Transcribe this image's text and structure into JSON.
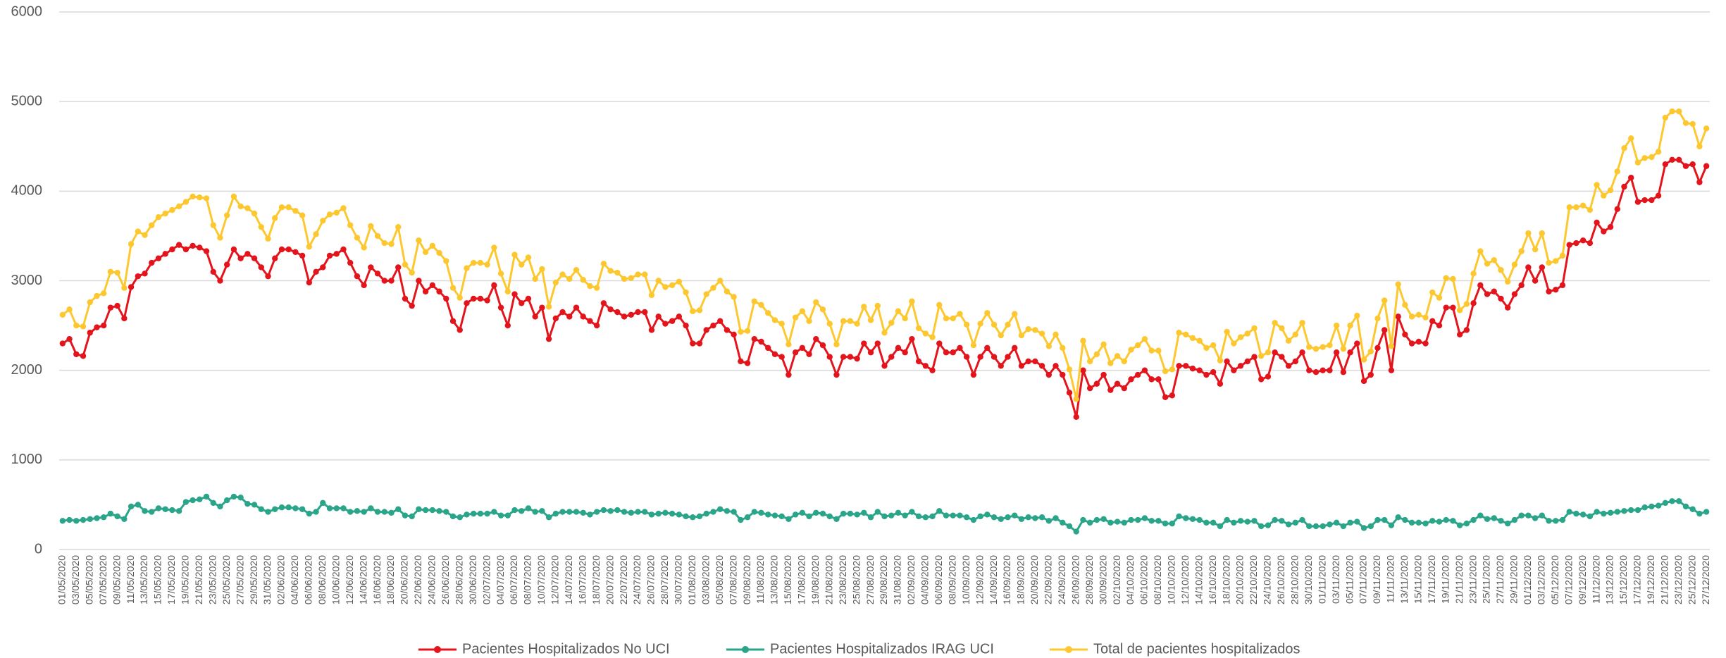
{
  "chart_data": {
    "type": "line",
    "categories": [
      "01/05/2020",
      null,
      "03/05/2020",
      null,
      "05/05/2020",
      null,
      "07/05/2020",
      null,
      "09/05/2020",
      null,
      "11/05/2020",
      null,
      "13/05/2020",
      null,
      "15/05/2020",
      null,
      "17/05/2020",
      null,
      "19/05/2020",
      null,
      "21/05/2020",
      null,
      "23/05/2020",
      null,
      "25/05/2020",
      null,
      "27/05/2020",
      null,
      "29/05/2020",
      null,
      "31/05/2020",
      null,
      "02/06/2020",
      null,
      "04/06/2020",
      null,
      "06/06/2020",
      null,
      "08/06/2020",
      null,
      "10/06/2020",
      null,
      "12/06/2020",
      null,
      "14/06/2020",
      null,
      "16/06/2020",
      null,
      "18/06/2020",
      null,
      "20/06/2020",
      null,
      "22/06/2020",
      null,
      "24/06/2020",
      null,
      "26/06/2020",
      null,
      "28/06/2020",
      null,
      "30/06/2020",
      null,
      "02/07/2020",
      null,
      "04/07/2020",
      null,
      "06/07/2020",
      null,
      "08/07/2020",
      null,
      "10/07/2020",
      null,
      "12/07/2020",
      null,
      "14/07/2020",
      null,
      "16/07/2020",
      null,
      "18/07/2020",
      null,
      "20/07/2020",
      null,
      "22/07/2020",
      null,
      "24/07/2020",
      null,
      "26/07/2020",
      null,
      "28/07/2020",
      null,
      "30/07/2020",
      null,
      "01/08/2020",
      null,
      "03/08/2020",
      null,
      "05/08/2020",
      null,
      "07/08/2020",
      null,
      "09/08/2020",
      null,
      "11/08/2020",
      null,
      "13/08/2020",
      null,
      "15/08/2020",
      null,
      "17/08/2020",
      null,
      "19/08/2020",
      null,
      "21/08/2020",
      null,
      "23/08/2020",
      null,
      "25/08/2020",
      null,
      "27/08/2020",
      null,
      "29/08/2020",
      null,
      "31/08/2020",
      null,
      "02/09/2020",
      null,
      "04/09/2020",
      null,
      "06/09/2020",
      null,
      "08/09/2020",
      null,
      "10/09/2020",
      null,
      "12/09/2020",
      null,
      "14/09/2020",
      null,
      "16/09/2020",
      null,
      "18/09/2020",
      null,
      "20/09/2020",
      null,
      "22/09/2020",
      null,
      "24/09/2020",
      null,
      "26/09/2020",
      null,
      "28/09/2020",
      null,
      "30/09/2020",
      null,
      "02/10/2020",
      null,
      "04/10/2020",
      null,
      "06/10/2020",
      null,
      "08/10/2020",
      null,
      "10/10/2020",
      null,
      "12/10/2020",
      null,
      "14/10/2020",
      null,
      "16/10/2020",
      null,
      "18/10/2020",
      null,
      "20/10/2020",
      null,
      "22/10/2020",
      null,
      "24/10/2020",
      null,
      "26/10/2020",
      null,
      "28/10/2020",
      null,
      "30/10/2020",
      null,
      "01/11/2020",
      null,
      "03/11/2020",
      null,
      "05/11/2020",
      null,
      "07/11/2020",
      null,
      "09/11/2020",
      null,
      "11/11/2020",
      null,
      "13/11/2020",
      null,
      "15/11/2020",
      null,
      "17/11/2020",
      null,
      "19/11/2020",
      null,
      "21/11/2020",
      null,
      "23/11/2020",
      null,
      "25/11/2020",
      null,
      "27/11/2020",
      null,
      "29/11/2020",
      null,
      "01/12/2020",
      null,
      "03/12/2020",
      null,
      "05/12/2020",
      null,
      "07/12/2020",
      null,
      "09/12/2020",
      null,
      "11/12/2020",
      null,
      "13/12/2020",
      null,
      "15/12/2020",
      null,
      "17/12/2020",
      null,
      "19/12/2020",
      null,
      "21/12/2020",
      null,
      "23/12/2020",
      null,
      "25/12/2020",
      null,
      "27/12/2020"
    ],
    "series": [
      {
        "name": "Pacientes Hospitalizados No UCI",
        "color": "#e3141b",
        "values": [
          2300,
          2350,
          2180,
          2160,
          2420,
          2480,
          2500,
          2700,
          2720,
          2580,
          2930,
          3050,
          3080,
          3200,
          3250,
          3300,
          3350,
          3400,
          3350,
          3390,
          3370,
          3330,
          3100,
          3000,
          3180,
          3350,
          3250,
          3300,
          3250,
          3150,
          3050,
          3250,
          3350,
          3350,
          3320,
          3280,
          2980,
          3100,
          3150,
          3280,
          3300,
          3350,
          3200,
          3050,
          2950,
          3150,
          3080,
          3000,
          3000,
          3150,
          2800,
          2720,
          3000,
          2880,
          2950,
          2880,
          2800,
          2550,
          2450,
          2750,
          2800,
          2800,
          2780,
          2950,
          2700,
          2500,
          2850,
          2750,
          2800,
          2600,
          2700,
          2350,
          2580,
          2650,
          2600,
          2700,
          2600,
          2550,
          2500,
          2750,
          2680,
          2650,
          2600,
          2620,
          2650,
          2650,
          2450,
          2600,
          2520,
          2550,
          2600,
          2500,
          2300,
          2300,
          2450,
          2500,
          2550,
          2450,
          2400,
          2100,
          2080,
          2350,
          2320,
          2250,
          2180,
          2150,
          1950,
          2200,
          2250,
          2180,
          2350,
          2280,
          2150,
          1950,
          2150,
          2150,
          2130,
          2300,
          2200,
          2300,
          2050,
          2150,
          2250,
          2200,
          2350,
          2100,
          2050,
          2000,
          2300,
          2200,
          2200,
          2250,
          2150,
          1950,
          2150,
          2250,
          2150,
          2050,
          2150,
          2250,
          2050,
          2100,
          2100,
          2050,
          1950,
          2050,
          1950,
          1750,
          1480,
          2000,
          1800,
          1850,
          1950,
          1780,
          1850,
          1800,
          1900,
          1950,
          2000,
          1900,
          1900,
          1700,
          1720,
          2050,
          2050,
          2020,
          2000,
          1950,
          1980,
          1850,
          2100,
          2000,
          2050,
          2100,
          2150,
          1900,
          1930,
          2200,
          2150,
          2050,
          2100,
          2200,
          2000,
          1980,
          2000,
          2000,
          2200,
          1980,
          2200,
          2300,
          1880,
          1950,
          2250,
          2450,
          2000,
          2600,
          2400,
          2300,
          2320,
          2300,
          2550,
          2500,
          2700,
          2700,
          2400,
          2450,
          2750,
          2950,
          2850,
          2880,
          2800,
          2700,
          2850,
          2950,
          3150,
          3000,
          3150,
          2880,
          2900,
          2950,
          3400,
          3420,
          3450,
          3420,
          3650,
          3550,
          3600,
          3800,
          4050,
          4150,
          3880,
          3900,
          3900,
          3950,
          4300,
          4350,
          4350,
          4280,
          4300,
          4100,
          4280
        ]
      },
      {
        "name": "Pacientes Hospitalizados IRAG UCI",
        "color": "#2aa58a",
        "values": [
          320,
          330,
          320,
          330,
          340,
          350,
          360,
          400,
          370,
          340,
          480,
          500,
          430,
          420,
          460,
          450,
          440,
          430,
          530,
          550,
          560,
          590,
          520,
          480,
          550,
          590,
          580,
          510,
          500,
          450,
          420,
          450,
          470,
          470,
          460,
          450,
          400,
          420,
          520,
          460,
          460,
          460,
          420,
          430,
          420,
          460,
          420,
          420,
          410,
          450,
          380,
          370,
          450,
          440,
          440,
          430,
          420,
          370,
          360,
          390,
          400,
          400,
          400,
          420,
          380,
          380,
          440,
          430,
          460,
          420,
          430,
          360,
          400,
          420,
          420,
          420,
          410,
          390,
          420,
          440,
          430,
          440,
          420,
          410,
          420,
          420,
          390,
          400,
          410,
          400,
          390,
          370,
          360,
          370,
          400,
          420,
          450,
          430,
          420,
          330,
          360,
          420,
          410,
          390,
          380,
          370,
          340,
          390,
          410,
          370,
          410,
          400,
          370,
          340,
          400,
          400,
          390,
          410,
          360,
          420,
          370,
          380,
          410,
          380,
          420,
          370,
          360,
          370,
          430,
          380,
          380,
          380,
          360,
          330,
          370,
          390,
          360,
          340,
          360,
          380,
          340,
          360,
          350,
          360,
          320,
          350,
          300,
          260,
          200,
          330,
          300,
          330,
          340,
          300,
          310,
          300,
          330,
          330,
          350,
          320,
          320,
          290,
          290,
          370,
          350,
          340,
          330,
          300,
          300,
          260,
          330,
          300,
          320,
          310,
          320,
          260,
          270,
          330,
          320,
          280,
          300,
          330,
          260,
          260,
          260,
          280,
          300,
          260,
          300,
          310,
          240,
          260,
          330,
          330,
          270,
          360,
          330,
          300,
          300,
          290,
          320,
          310,
          330,
          320,
          270,
          290,
          330,
          380,
          340,
          350,
          320,
          290,
          330,
          380,
          380,
          350,
          380,
          320,
          320,
          330,
          420,
          400,
          390,
          370,
          420,
          400,
          410,
          420,
          430,
          440,
          440,
          470,
          480,
          490,
          520,
          540,
          540,
          480,
          450,
          400,
          420
        ]
      },
      {
        "name": "Total de pacientes hospitalizados",
        "color": "#fdc82f",
        "values": [
          2620,
          2680,
          2500,
          2490,
          2760,
          2830,
          2860,
          3100,
          3090,
          2920,
          3410,
          3550,
          3510,
          3620,
          3710,
          3750,
          3790,
          3830,
          3880,
          3940,
          3930,
          3920,
          3620,
          3480,
          3730,
          3940,
          3830,
          3810,
          3750,
          3600,
          3470,
          3700,
          3820,
          3820,
          3780,
          3730,
          3380,
          3520,
          3670,
          3740,
          3760,
          3810,
          3620,
          3480,
          3370,
          3610,
          3500,
          3420,
          3410,
          3600,
          3180,
          3090,
          3450,
          3320,
          3390,
          3310,
          3220,
          2920,
          2810,
          3140,
          3200,
          3200,
          3180,
          3370,
          3080,
          2880,
          3290,
          3180,
          3260,
          3020,
          3130,
          2710,
          2980,
          3070,
          3020,
          3120,
          3010,
          2940,
          2920,
          3190,
          3110,
          3090,
          3020,
          3030,
          3070,
          3070,
          2840,
          3000,
          2930,
          2950,
          2990,
          2870,
          2660,
          2670,
          2850,
          2920,
          3000,
          2880,
          2820,
          2430,
          2440,
          2770,
          2730,
          2640,
          2560,
          2520,
          2290,
          2590,
          2660,
          2550,
          2760,
          2680,
          2520,
          2290,
          2550,
          2550,
          2520,
          2710,
          2560,
          2720,
          2420,
          2530,
          2660,
          2580,
          2770,
          2470,
          2410,
          2370,
          2730,
          2580,
          2580,
          2630,
          2510,
          2280,
          2520,
          2640,
          2510,
          2390,
          2510,
          2630,
          2390,
          2460,
          2450,
          2410,
          2270,
          2400,
          2250,
          2010,
          1680,
          2330,
          2100,
          2180,
          2290,
          2080,
          2160,
          2100,
          2230,
          2280,
          2350,
          2220,
          2220,
          1990,
          2010,
          2420,
          2400,
          2360,
          2330,
          2250,
          2280,
          2110,
          2430,
          2300,
          2370,
          2410,
          2470,
          2160,
          2200,
          2530,
          2470,
          2330,
          2400,
          2530,
          2260,
          2240,
          2260,
          2280,
          2500,
          2240,
          2500,
          2610,
          2120,
          2210,
          2580,
          2780,
          2270,
          2960,
          2730,
          2600,
          2620,
          2590,
          2870,
          2810,
          3030,
          3020,
          2670,
          2740,
          3080,
          3330,
          3190,
          3230,
          3120,
          2990,
          3180,
          3330,
          3530,
          3350,
          3530,
          3200,
          3220,
          3280,
          3820,
          3820,
          3840,
          3790,
          4070,
          3950,
          4010,
          4220,
          4480,
          4590,
          4320,
          4370,
          4380,
          4440,
          4820,
          4890,
          4890,
          4760,
          4750,
          4500,
          4700
        ]
      }
    ],
    "ylim": [
      0,
      6000
    ],
    "yticks": [
      0,
      1000,
      2000,
      3000,
      4000,
      5000,
      6000
    ],
    "grid": true,
    "legend": "bottom"
  }
}
